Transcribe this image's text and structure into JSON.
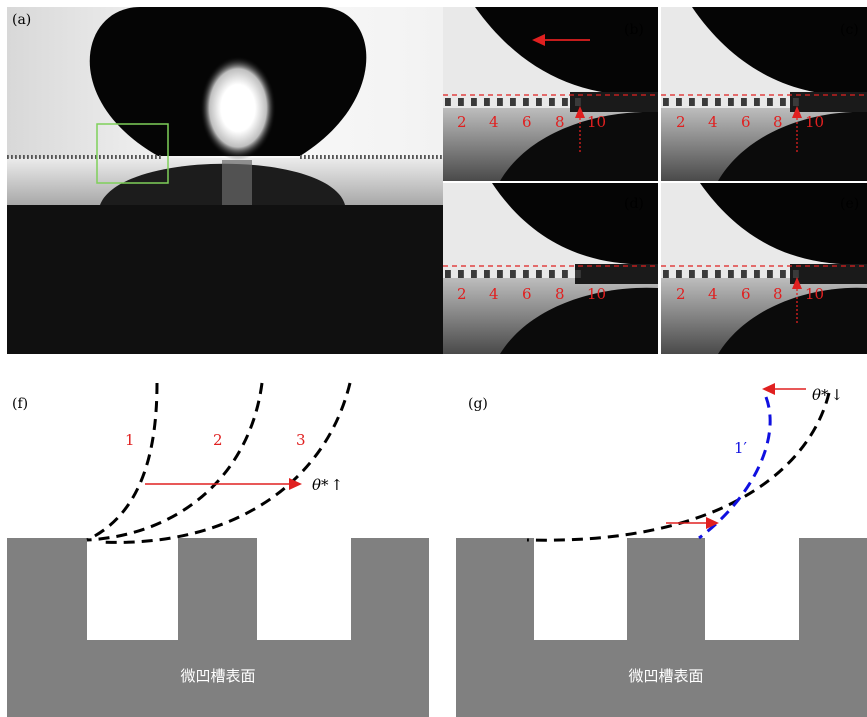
{
  "panels": {
    "a": {
      "label": "(a)"
    },
    "b": {
      "label": "(b)"
    },
    "c": {
      "label": "(c)"
    },
    "d": {
      "label": "(d)"
    },
    "e": {
      "label": "(e)"
    },
    "f": {
      "label": "(f)"
    },
    "g": {
      "label": "(g)"
    }
  },
  "groove_numbers": [
    "2",
    "4",
    "6",
    "8",
    "10"
  ],
  "curves_f": {
    "c1": "1",
    "c2": "2",
    "c3": "3"
  },
  "curve_g": {
    "c1p": "1′"
  },
  "angle_label": "θ*",
  "angle_up": "↑",
  "angle_down": "↓",
  "surface_caption": "微凹槽表面",
  "colors": {
    "dashed_red": "#e02020",
    "arrow_red": "#e02020",
    "blue_curve": "#1010e0",
    "substrate_gray": "#808080",
    "box_green": "#7fd05a"
  }
}
